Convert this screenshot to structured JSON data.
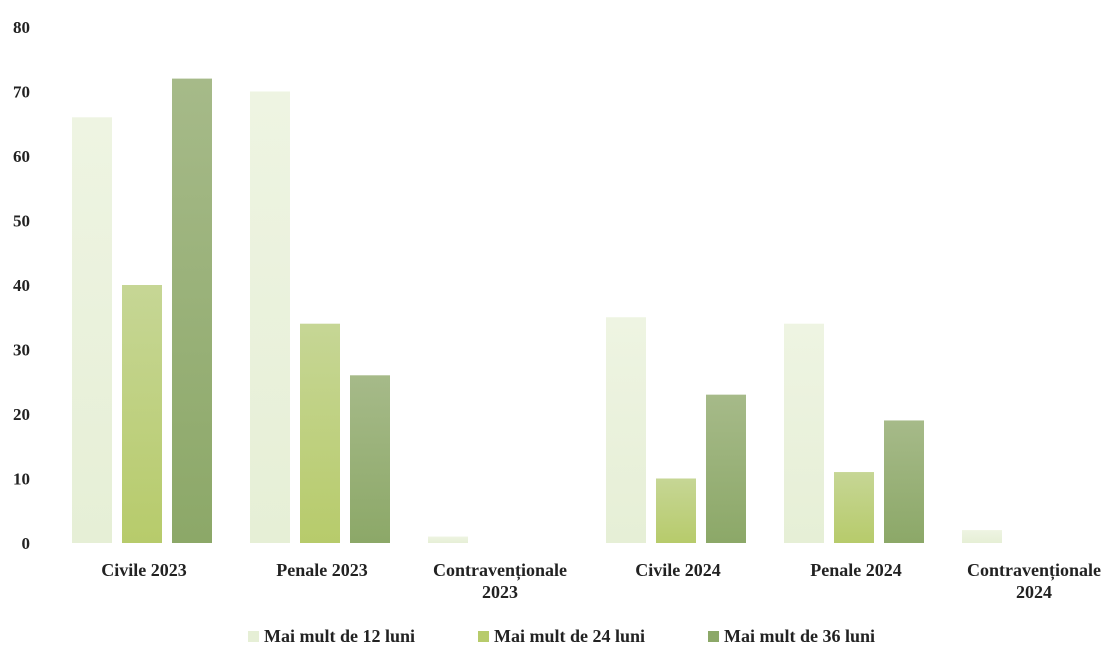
{
  "chart_data": {
    "type": "bar",
    "categories": [
      [
        "Civile 2023"
      ],
      [
        "Penale 2023"
      ],
      [
        "Contravenționale",
        "2023"
      ],
      [
        "Civile 2024"
      ],
      [
        "Penale 2024"
      ],
      [
        "Contravenționale",
        "2024"
      ]
    ],
    "series": [
      {
        "name": "Mai mult de 12 luni",
        "values": [
          66,
          70,
          1,
          35,
          34,
          2
        ],
        "color": "#e6efd6",
        "color_top": "#eef4e2"
      },
      {
        "name": "Mai mult de 24 luni",
        "values": [
          40,
          34,
          0,
          10,
          11,
          0
        ],
        "color": "#b7cb6b",
        "color_top": "#c6d695"
      },
      {
        "name": "Mai mult de 36 luni",
        "values": [
          72,
          26,
          0,
          23,
          19,
          0
        ],
        "color": "#8ca868",
        "color_top": "#a6ba89"
      }
    ],
    "ylim": [
      0,
      80
    ],
    "yticks": [
      0,
      10,
      20,
      30,
      40,
      50,
      60,
      70,
      80
    ],
    "grid": false,
    "legend": "bottom"
  }
}
